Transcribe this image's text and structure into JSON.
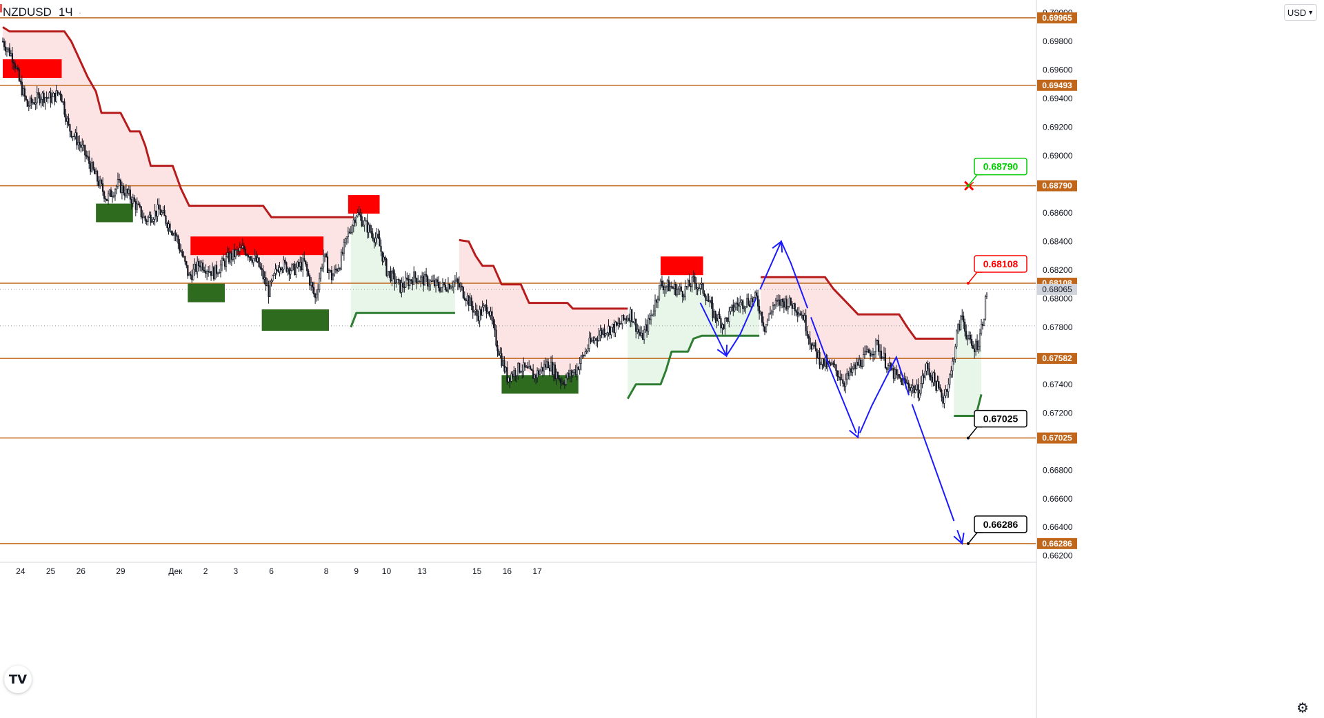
{
  "header": {
    "symbol": "NZDUSD",
    "timeframe": "1Ч",
    "dot": "·"
  },
  "currency_button": "USD",
  "logo": "TV",
  "settings_icon": "gear-icon",
  "colors": {
    "level_line": "#c0661a",
    "level_tag": "#c0661a",
    "candle": "#131722",
    "trail_red": "#b71c1c",
    "trail_green": "#2e7d32",
    "zone_red": "#ff0000",
    "zone_green": "#2e6b1e",
    "fill_red": "#fde4e4",
    "fill_green": "#e8f5e9",
    "projection": "#1a1aff",
    "label_green": "#00cc00",
    "label_red": "#ff0000",
    "label_black": "#000000"
  },
  "chart_data": {
    "type": "candlestick",
    "symbol": "NZDUSD",
    "timeframe": "1H",
    "ylim": [
      0.6616,
      0.7009
    ],
    "y_ticks": [
      "0.70000",
      "0.69800",
      "0.69600",
      "0.69400",
      "0.69200",
      "0.69000",
      "0.68600",
      "0.68400",
      "0.68200",
      "0.68000",
      "0.67800",
      "0.67400",
      "0.67200",
      "0.66800",
      "0.66600",
      "0.66400",
      "0.66200"
    ],
    "x_ticks": [
      "24",
      "25",
      "26",
      "29",
      "Дек",
      "2",
      "3",
      "6",
      "8",
      "9",
      "10",
      "13",
      "15",
      "16",
      "17"
    ],
    "levels": [
      0.69965,
      0.69493,
      0.6879,
      0.68108,
      0.67582,
      0.67025,
      0.66286
    ],
    "level_labels": [
      "0.69965",
      "0.69493",
      "0.68790",
      "0.68108",
      "0.67582",
      "0.67025",
      "0.66286"
    ],
    "last_price": "0.68065",
    "target_labels": [
      {
        "text": "0.68790",
        "price": 0.6879,
        "color": "green"
      },
      {
        "text": "0.68108",
        "price": 0.68108,
        "color": "red"
      },
      {
        "text": "0.67025",
        "price": 0.67025,
        "color": "black"
      },
      {
        "text": "0.66286",
        "price": 0.66286,
        "color": "black"
      }
    ],
    "anchors": [
      {
        "t": 0,
        "p": 0.698
      },
      {
        "t": 8,
        "p": 0.6968
      },
      {
        "t": 12,
        "p": 0.6952
      },
      {
        "t": 18,
        "p": 0.6935
      },
      {
        "t": 28,
        "p": 0.6942
      },
      {
        "t": 36,
        "p": 0.694
      },
      {
        "t": 42,
        "p": 0.6945
      },
      {
        "t": 48,
        "p": 0.692
      },
      {
        "t": 58,
        "p": 0.6905
      },
      {
        "t": 68,
        "p": 0.6885
      },
      {
        "t": 76,
        "p": 0.687
      },
      {
        "t": 84,
        "p": 0.688
      },
      {
        "t": 94,
        "p": 0.687
      },
      {
        "t": 104,
        "p": 0.6855
      },
      {
        "t": 114,
        "p": 0.6862
      },
      {
        "t": 126,
        "p": 0.6845
      },
      {
        "t": 136,
        "p": 0.6815
      },
      {
        "t": 144,
        "p": 0.6825
      },
      {
        "t": 154,
        "p": 0.6818
      },
      {
        "t": 164,
        "p": 0.6828
      },
      {
        "t": 176,
        "p": 0.6835
      },
      {
        "t": 186,
        "p": 0.6825
      },
      {
        "t": 194,
        "p": 0.6805
      },
      {
        "t": 202,
        "p": 0.6825
      },
      {
        "t": 212,
        "p": 0.682
      },
      {
        "t": 220,
        "p": 0.6825
      },
      {
        "t": 228,
        "p": 0.68
      },
      {
        "t": 234,
        "p": 0.683
      },
      {
        "t": 240,
        "p": 0.6815
      },
      {
        "t": 246,
        "p": 0.6825
      },
      {
        "t": 252,
        "p": 0.6845
      },
      {
        "t": 258,
        "p": 0.686
      },
      {
        "t": 266,
        "p": 0.685
      },
      {
        "t": 274,
        "p": 0.684
      },
      {
        "t": 280,
        "p": 0.682
      },
      {
        "t": 290,
        "p": 0.6808
      },
      {
        "t": 300,
        "p": 0.6815
      },
      {
        "t": 310,
        "p": 0.6812
      },
      {
        "t": 320,
        "p": 0.6808
      },
      {
        "t": 330,
        "p": 0.6812
      },
      {
        "t": 338,
        "p": 0.6802
      },
      {
        "t": 346,
        "p": 0.6788
      },
      {
        "t": 354,
        "p": 0.6795
      },
      {
        "t": 360,
        "p": 0.677
      },
      {
        "t": 368,
        "p": 0.6745
      },
      {
        "t": 378,
        "p": 0.6752
      },
      {
        "t": 388,
        "p": 0.6746
      },
      {
        "t": 398,
        "p": 0.6755
      },
      {
        "t": 408,
        "p": 0.6742
      },
      {
        "t": 418,
        "p": 0.675
      },
      {
        "t": 428,
        "p": 0.6768
      },
      {
        "t": 438,
        "p": 0.6778
      },
      {
        "t": 448,
        "p": 0.678
      },
      {
        "t": 458,
        "p": 0.679
      },
      {
        "t": 466,
        "p": 0.6772
      },
      {
        "t": 472,
        "p": 0.6785
      },
      {
        "t": 480,
        "p": 0.681
      },
      {
        "t": 488,
        "p": 0.6808
      },
      {
        "t": 496,
        "p": 0.6805
      },
      {
        "t": 504,
        "p": 0.6812
      },
      {
        "t": 512,
        "p": 0.6805
      },
      {
        "t": 518,
        "p": 0.679
      },
      {
        "t": 526,
        "p": 0.6782
      },
      {
        "t": 534,
        "p": 0.6795
      },
      {
        "t": 542,
        "p": 0.6798
      },
      {
        "t": 550,
        "p": 0.68
      },
      {
        "t": 556,
        "p": 0.678
      },
      {
        "t": 562,
        "p": 0.6795
      },
      {
        "t": 570,
        "p": 0.6798
      },
      {
        "t": 578,
        "p": 0.6795
      },
      {
        "t": 584,
        "p": 0.6788
      },
      {
        "t": 590,
        "p": 0.6768
      },
      {
        "t": 598,
        "p": 0.6755
      },
      {
        "t": 606,
        "p": 0.6752
      },
      {
        "t": 614,
        "p": 0.6742
      },
      {
        "t": 622,
        "p": 0.6752
      },
      {
        "t": 630,
        "p": 0.676
      },
      {
        "t": 638,
        "p": 0.6768
      },
      {
        "t": 646,
        "p": 0.6752
      },
      {
        "t": 652,
        "p": 0.6745
      },
      {
        "t": 660,
        "p": 0.674
      },
      {
        "t": 668,
        "p": 0.6735
      },
      {
        "t": 674,
        "p": 0.6752
      },
      {
        "t": 680,
        "p": 0.6742
      },
      {
        "t": 686,
        "p": 0.673
      },
      {
        "t": 692,
        "p": 0.6748
      },
      {
        "t": 696,
        "p": 0.6775
      },
      {
        "t": 700,
        "p": 0.6788
      },
      {
        "t": 704,
        "p": 0.6772
      },
      {
        "t": 708,
        "p": 0.6765
      },
      {
        "t": 712,
        "p": 0.677
      },
      {
        "t": 716,
        "p": 0.679
      },
      {
        "t": 718,
        "p": 0.6805
      }
    ],
    "red_trail": [
      {
        "t": 0,
        "p": 0.699
      },
      {
        "t": 5,
        "p": 0.6987
      },
      {
        "t": 45,
        "p": 0.6987
      },
      {
        "t": 50,
        "p": 0.698
      },
      {
        "t": 62,
        "p": 0.6955
      },
      {
        "t": 68,
        "p": 0.6945
      },
      {
        "t": 72,
        "p": 0.693
      },
      {
        "t": 86,
        "p": 0.693
      },
      {
        "t": 93,
        "p": 0.6917
      },
      {
        "t": 100,
        "p": 0.6917
      },
      {
        "t": 104,
        "p": 0.6907
      },
      {
        "t": 108,
        "p": 0.6893
      },
      {
        "t": 124,
        "p": 0.6893
      },
      {
        "t": 130,
        "p": 0.6877
      },
      {
        "t": 136,
        "p": 0.6865
      },
      {
        "t": 190,
        "p": 0.6865
      },
      {
        "t": 196,
        "p": 0.6857
      },
      {
        "t": 256,
        "p": 0.6857
      }
    ],
    "red_trail_2": [
      {
        "t": 333,
        "p": 0.6841
      },
      {
        "t": 340,
        "p": 0.684
      },
      {
        "t": 345,
        "p": 0.683
      },
      {
        "t": 350,
        "p": 0.6823
      },
      {
        "t": 358,
        "p": 0.6823
      },
      {
        "t": 364,
        "p": 0.681
      },
      {
        "t": 378,
        "p": 0.681
      },
      {
        "t": 384,
        "p": 0.6797
      },
      {
        "t": 412,
        "p": 0.6797
      },
      {
        "t": 416,
        "p": 0.6793
      },
      {
        "t": 456,
        "p": 0.6793
      }
    ],
    "red_trail_3": [
      {
        "t": 553,
        "p": 0.6815
      },
      {
        "t": 600,
        "p": 0.6815
      },
      {
        "t": 606,
        "p": 0.6807
      },
      {
        "t": 616,
        "p": 0.6797
      },
      {
        "t": 624,
        "p": 0.6789
      },
      {
        "t": 654,
        "p": 0.6789
      },
      {
        "t": 660,
        "p": 0.678
      },
      {
        "t": 666,
        "p": 0.6772
      },
      {
        "t": 694,
        "p": 0.6772
      }
    ],
    "green_trail": [
      {
        "t": 254,
        "p": 0.678
      },
      {
        "t": 258,
        "p": 0.679
      },
      {
        "t": 330,
        "p": 0.679
      }
    ],
    "green_trail_2": [
      {
        "t": 456,
        "p": 0.673
      },
      {
        "t": 462,
        "p": 0.674
      },
      {
        "t": 480,
        "p": 0.674
      },
      {
        "t": 484,
        "p": 0.675
      },
      {
        "t": 488,
        "p": 0.6763
      },
      {
        "t": 500,
        "p": 0.6763
      },
      {
        "t": 504,
        "p": 0.6772
      },
      {
        "t": 510,
        "p": 0.6774
      },
      {
        "t": 552,
        "p": 0.6774
      }
    ],
    "green_trail_3": [
      {
        "t": 694,
        "p": 0.6718
      },
      {
        "t": 710,
        "p": 0.6718
      },
      {
        "t": 714,
        "p": 0.6733
      }
    ],
    "zones": [
      {
        "color": "red",
        "t0": 0,
        "t1": 43,
        "p0": 0.69675,
        "p1": 0.69545
      },
      {
        "color": "red",
        "t0": 137,
        "t1": 234,
        "p0": 0.68435,
        "p1": 0.68305
      },
      {
        "color": "red",
        "t0": 252,
        "t1": 275,
        "p0": 0.68725,
        "p1": 0.68595
      },
      {
        "color": "red",
        "t0": 480,
        "t1": 511,
        "p0": 0.68295,
        "p1": 0.68165
      },
      {
        "color": "green",
        "t0": 68,
        "t1": 95,
        "p0": 0.68665,
        "p1": 0.68535
      },
      {
        "color": "green",
        "t0": 135,
        "t1": 162,
        "p0": 0.68105,
        "p1": 0.67975
      },
      {
        "color": "green",
        "t0": 189,
        "t1": 238,
        "p0": 0.67925,
        "p1": 0.67775
      },
      {
        "color": "green",
        "t0": 364,
        "t1": 420,
        "p0": 0.67465,
        "p1": 0.67335
      }
    ],
    "projection_path": [
      {
        "t": 509,
        "p": 0.6797
      },
      {
        "t": 528,
        "p": 0.676
      },
      {
        "t": 538,
        "p": 0.6775
      },
      {
        "t": 568,
        "p": 0.684
      },
      {
        "t": 575,
        "p": 0.6825
      },
      {
        "t": 604,
        "p": 0.675
      },
      {
        "t": 624,
        "p": 0.6703
      },
      {
        "t": 634,
        "p": 0.6725
      },
      {
        "t": 652,
        "p": 0.6759
      },
      {
        "t": 662,
        "p": 0.673
      },
      {
        "t": 700,
        "p": 0.66286
      }
    ]
  }
}
